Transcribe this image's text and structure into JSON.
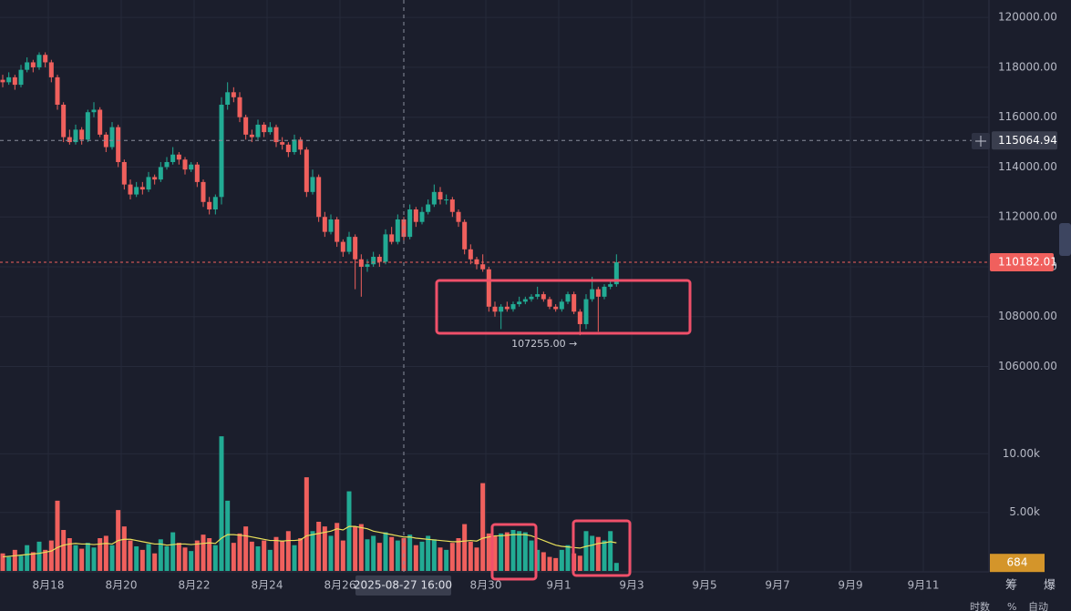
{
  "chart_data": {
    "type": "candlestick",
    "up_color": "#22ab94",
    "down_color": "#f0605d",
    "grid": true,
    "xlim": [
      -0.45,
      162.3
    ],
    "xticks": [
      {
        "value": 7.5,
        "label": "8月18"
      },
      {
        "value": 19.5,
        "label": "8月20"
      },
      {
        "value": 31.5,
        "label": "8月22"
      },
      {
        "value": 43.5,
        "label": "8月24"
      },
      {
        "value": 55.5,
        "label": "8月26"
      },
      {
        "value": 79.5,
        "label": "8月30"
      },
      {
        "value": 91.5,
        "label": "9月1"
      },
      {
        "value": 103.5,
        "label": "9月3"
      },
      {
        "value": 115.5,
        "label": "9月5"
      },
      {
        "value": 127.5,
        "label": "9月7"
      },
      {
        "value": 139.5,
        "label": "9月9"
      },
      {
        "value": 151.5,
        "label": "9月11"
      }
    ],
    "ylim": [
      103900,
      120700
    ],
    "yticks": [
      {
        "value": 120000,
        "label": "120000.00"
      },
      {
        "value": 118000,
        "label": "118000.00"
      },
      {
        "value": 116000,
        "label": "116000.00"
      },
      {
        "value": 114000,
        "label": "114000.00"
      },
      {
        "value": 112000,
        "label": "112000.00"
      },
      {
        "value": 110000,
        "label": "110000.00"
      },
      {
        "value": 108000,
        "label": "108000.00"
      },
      {
        "value": 106000,
        "label": "106000.00"
      }
    ],
    "candles": [
      [
        117500,
        117700,
        117200,
        117400
      ],
      [
        117400,
        117800,
        117300,
        117600
      ],
      [
        117600,
        117700,
        117100,
        117300
      ],
      [
        117300,
        118100,
        117200,
        117900
      ],
      [
        117900,
        118400,
        117800,
        118200
      ],
      [
        118200,
        118300,
        117800,
        118000
      ],
      [
        118000,
        118600,
        117900,
        118500
      ],
      [
        118500,
        118600,
        118000,
        118200
      ],
      [
        118200,
        118300,
        117400,
        117600
      ],
      [
        117600,
        117700,
        116300,
        116500
      ],
      [
        116500,
        116600,
        115000,
        115200
      ],
      [
        115200,
        115500,
        114900,
        115000
      ],
      [
        115000,
        115700,
        114900,
        115500
      ],
      [
        115500,
        115600,
        114900,
        115100
      ],
      [
        115100,
        116300,
        115000,
        116200
      ],
      [
        116200,
        116600,
        116000,
        116300
      ],
      [
        116300,
        116400,
        115200,
        115300
      ],
      [
        115300,
        115400,
        114600,
        114800
      ],
      [
        114800,
        115800,
        114700,
        115600
      ],
      [
        115600,
        115700,
        114000,
        114200
      ],
      [
        114200,
        114300,
        113100,
        113300
      ],
      [
        113300,
        113500,
        112700,
        112900
      ],
      [
        112900,
        113400,
        112800,
        113200
      ],
      [
        113200,
        113400,
        112900,
        113100
      ],
      [
        113100,
        113800,
        113000,
        113600
      ],
      [
        113600,
        113700,
        113300,
        113500
      ],
      [
        113500,
        114200,
        113400,
        114000
      ],
      [
        114000,
        114400,
        113900,
        114200
      ],
      [
        114200,
        114800,
        114100,
        114500
      ],
      [
        114500,
        114600,
        114100,
        114300
      ],
      [
        114300,
        114400,
        113700,
        113900
      ],
      [
        113900,
        114200,
        113800,
        114100
      ],
      [
        114100,
        114200,
        113200,
        113400
      ],
      [
        113400,
        113500,
        112400,
        112600
      ],
      [
        112600,
        112800,
        112100,
        112300
      ],
      [
        112300,
        112900,
        112100,
        112800
      ],
      [
        112800,
        116800,
        112500,
        116500
      ],
      [
        116500,
        117400,
        116300,
        117000
      ],
      [
        117000,
        117200,
        116600,
        116800
      ],
      [
        116800,
        117000,
        115800,
        116000
      ],
      [
        116000,
        116100,
        115100,
        115300
      ],
      [
        115300,
        115500,
        115000,
        115200
      ],
      [
        115200,
        115900,
        115100,
        115700
      ],
      [
        115700,
        115800,
        115200,
        115400
      ],
      [
        115400,
        115800,
        115300,
        115600
      ],
      [
        115600,
        115700,
        114800,
        115000
      ],
      [
        115000,
        115200,
        114700,
        114900
      ],
      [
        114900,
        115000,
        114400,
        114600
      ],
      [
        114600,
        115300,
        114500,
        115100
      ],
      [
        115100,
        115200,
        114500,
        114700
      ],
      [
        114700,
        114800,
        112800,
        113000
      ],
      [
        113000,
        113900,
        112900,
        113600
      ],
      [
        113600,
        113700,
        111800,
        112000
      ],
      [
        112000,
        112200,
        111200,
        111400
      ],
      [
        111400,
        112100,
        111300,
        111900
      ],
      [
        111900,
        112000,
        110800,
        111000
      ],
      [
        111000,
        111100,
        110400,
        110600
      ],
      [
        110600,
        111400,
        110500,
        111200
      ],
      [
        111200,
        111300,
        109100,
        110300
      ],
      [
        110300,
        110500,
        108800,
        110000
      ],
      [
        110000,
        110300,
        109800,
        110100
      ],
      [
        110100,
        110600,
        110000,
        110400
      ],
      [
        110400,
        110500,
        110000,
        110200
      ],
      [
        110200,
        111500,
        110100,
        111300
      ],
      [
        111300,
        111600,
        110900,
        111000
      ],
      [
        111000,
        112100,
        110900,
        111900
      ],
      [
        111900,
        112000,
        111000,
        111200
      ],
      [
        111200,
        112500,
        111100,
        112300
      ],
      [
        112300,
        112400,
        111600,
        111800
      ],
      [
        111800,
        112400,
        111700,
        112200
      ],
      [
        112200,
        112700,
        112100,
        112500
      ],
      [
        112500,
        113300,
        112400,
        113000
      ],
      [
        113000,
        113200,
        112500,
        112700
      ],
      [
        112700,
        112900,
        112500,
        112700
      ],
      [
        112700,
        112800,
        112000,
        112200
      ],
      [
        112200,
        112300,
        111600,
        111800
      ],
      [
        111800,
        111900,
        110500,
        110700
      ],
      [
        110700,
        110900,
        110100,
        110300
      ],
      [
        110300,
        110400,
        109900,
        110100
      ],
      [
        110100,
        110500,
        109800,
        109900
      ],
      [
        109900,
        110000,
        108200,
        108400
      ],
      [
        108400,
        108600,
        108000,
        108200
      ],
      [
        108200,
        108500,
        107500,
        108400
      ],
      [
        108400,
        108600,
        108200,
        108300
      ],
      [
        108300,
        108600,
        108200,
        108500
      ],
      [
        108500,
        108800,
        108400,
        108600
      ],
      [
        108600,
        108800,
        108500,
        108700
      ],
      [
        108700,
        108900,
        108600,
        108800
      ],
      [
        108800,
        109200,
        108700,
        108900
      ],
      [
        108900,
        109000,
        108600,
        108700
      ],
      [
        108700,
        108800,
        108300,
        108400
      ],
      [
        108400,
        108500,
        108200,
        108300
      ],
      [
        108300,
        108700,
        108200,
        108600
      ],
      [
        108600,
        109000,
        108500,
        108900
      ],
      [
        108900,
        109000,
        108100,
        108200
      ],
      [
        108200,
        108300,
        107255,
        107700
      ],
      [
        107700,
        108900,
        107500,
        108700
      ],
      [
        108700,
        109600,
        108600,
        109100
      ],
      [
        109100,
        109200,
        107400,
        108800
      ],
      [
        108800,
        109300,
        108700,
        109200
      ],
      [
        109200,
        109500,
        109100,
        109300
      ],
      [
        109300,
        110500,
        109200,
        110182.01
      ]
    ],
    "volumes": [
      1500,
      1200,
      1800,
      1300,
      2200,
      1600,
      2500,
      1800,
      2600,
      6000,
      3500,
      2800,
      2200,
      1900,
      2400,
      2000,
      2800,
      3000,
      2200,
      5200,
      3800,
      2600,
      2100,
      1800,
      2300,
      1500,
      2700,
      2100,
      3300,
      2400,
      2000,
      1700,
      2600,
      3100,
      2800,
      2200,
      11500,
      6000,
      2400,
      3200,
      3800,
      2500,
      2100,
      2600,
      1800,
      2900,
      2600,
      3400,
      2200,
      2800,
      8000,
      3400,
      4200,
      3800,
      3000,
      4100,
      2600,
      6800,
      3800,
      4000,
      2700,
      3000,
      2400,
      3300,
      2900,
      2600,
      2800,
      3100,
      2200,
      2500,
      3000,
      2700,
      2000,
      1800,
      2400,
      2800,
      4000,
      2500,
      2000,
      7500,
      3200,
      3000,
      3200,
      3300,
      3500,
      3400,
      3300,
      2600,
      1800,
      1600,
      1200,
      1100,
      1800,
      2200,
      1500,
      1300,
      3400,
      3000,
      2900,
      2600,
      3400,
      684
    ],
    "volume_ylim": [
      0,
      12600
    ],
    "volume_yticks": [
      {
        "value": 10000,
        "label": "10.00k"
      },
      {
        "value": 5000,
        "label": "5.00k"
      }
    ],
    "volume_ma": {
      "color": "#e8e05a",
      "values": [
        1200,
        1250,
        1300,
        1350,
        1400,
        1450,
        1500,
        1600,
        1700,
        2000,
        2200,
        2300,
        2350,
        2300,
        2300,
        2250,
        2300,
        2350,
        2300,
        2600,
        2700,
        2700,
        2600,
        2500,
        2400,
        2300,
        2300,
        2200,
        2250,
        2300,
        2300,
        2250,
        2300,
        2350,
        2400,
        2350,
        2800,
        3100,
        3100,
        3050,
        3000,
        2900,
        2800,
        2700,
        2600,
        2600,
        2550,
        2600,
        2600,
        2650,
        3000,
        3100,
        3200,
        3300,
        3400,
        3600,
        3500,
        3800,
        3800,
        3700,
        3600,
        3400,
        3300,
        3200,
        3100,
        3000,
        2900,
        2900,
        2800,
        2750,
        2700,
        2650,
        2600,
        2550,
        2500,
        2500,
        2550,
        2600,
        2550,
        2800,
        2900,
        3000,
        3000,
        3050,
        3100,
        3100,
        3100,
        3000,
        2800,
        2600,
        2400,
        2200,
        2100,
        2050,
        2000,
        1950,
        2100,
        2200,
        2350,
        2400,
        2500,
        2400
      ]
    },
    "last_price": 110182.01,
    "low_label": {
      "value": 107255,
      "label": "107255.00 →"
    },
    "crosshair": {
      "time_label": "2025-08-27 16:00",
      "price": 115064.94
    }
  },
  "toolbar": {
    "buttons": [
      "筹",
      "爆"
    ],
    "footer": [
      "时数",
      "%",
      "自动"
    ]
  }
}
